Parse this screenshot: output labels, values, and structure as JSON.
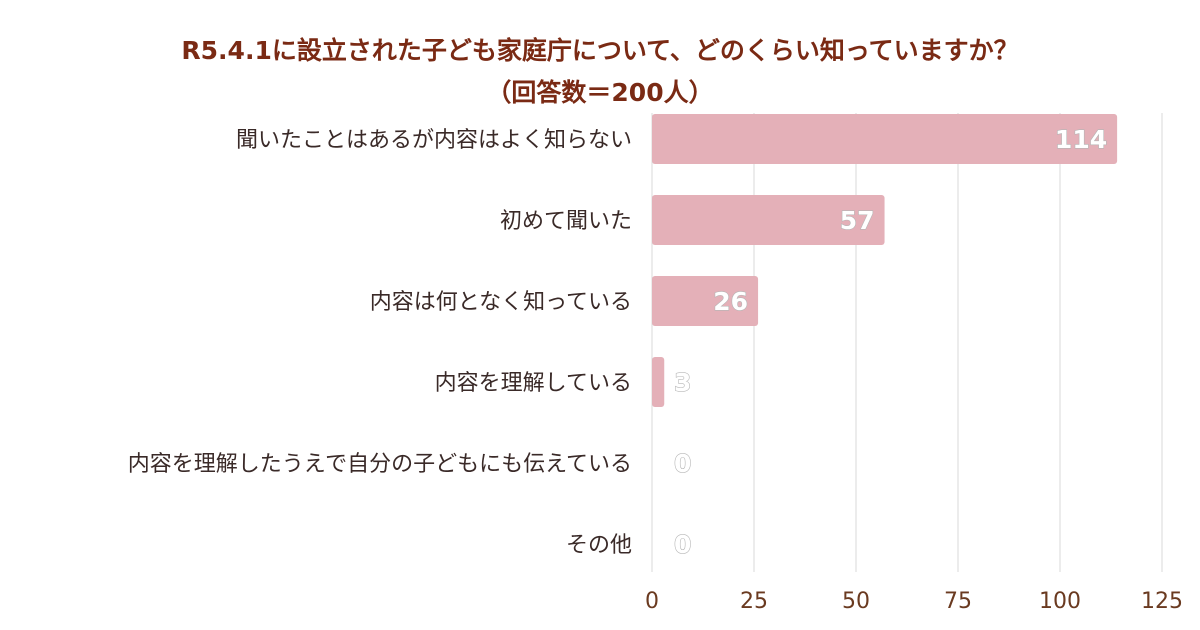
{
  "chart_data": {
    "type": "bar",
    "orientation": "horizontal",
    "title": "R5.4.1に設立された子ども家庭庁について、どのくらい知っていますか？",
    "subtitle": "（回答数＝200人）",
    "categories": [
      "聞いたことはあるが内容はよく知らない",
      "初めて聞いた",
      "内容は何となく知っている",
      "内容を理解している",
      "内容を理解したうえで自分の子どもにも伝えている",
      "その他"
    ],
    "values": [
      114,
      57,
      26,
      3,
      0,
      0
    ],
    "xlim": [
      0,
      125
    ],
    "xticks": [
      0,
      25,
      50,
      75,
      100,
      125
    ],
    "grid": "vertical",
    "legend": "none",
    "bar_color": "#e4b0b8",
    "grid_color": "#d9d9d9"
  }
}
